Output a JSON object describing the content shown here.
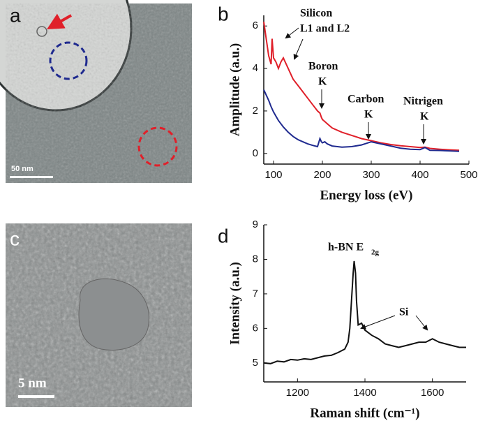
{
  "panels": [
    "a",
    "b",
    "c",
    "d"
  ],
  "scale_bars": [
    "50 nm",
    "5 nm"
  ],
  "chart_data": [
    {
      "type": "line",
      "xlabel": "Energy loss (eV)",
      "ylabel": "Amplitude (a.u.)",
      "annotations": [
        "Silicon",
        "L1 and L2",
        "Boron",
        "K",
        "Carbon",
        "K",
        "Nitrigen",
        "K"
      ],
      "x": [
        80,
        90,
        95,
        97,
        100,
        105,
        110,
        115,
        120,
        130,
        140,
        150,
        160,
        170,
        180,
        190,
        195,
        198,
        200,
        205,
        210,
        220,
        240,
        260,
        280,
        300,
        320,
        340,
        360,
        380,
        400,
        410,
        420,
        440,
        460,
        480
      ],
      "series": [
        {
          "color": "#e0202a",
          "values": [
            6.2,
            4.6,
            4.2,
            5.4,
            4.5,
            4.3,
            4.0,
            4.3,
            4.5,
            4.0,
            3.5,
            3.2,
            2.9,
            2.6,
            2.3,
            2.0,
            1.9,
            1.7,
            1.6,
            1.5,
            1.4,
            1.2,
            1.0,
            0.85,
            0.7,
            0.6,
            0.5,
            0.42,
            0.36,
            0.32,
            0.28,
            0.3,
            0.24,
            0.2,
            0.17,
            0.15
          ]
        },
        {
          "color": "#1f2a8f",
          "values": [
            3.0,
            2.5,
            2.2,
            2.1,
            1.95,
            1.75,
            1.55,
            1.4,
            1.25,
            1.0,
            0.8,
            0.65,
            0.55,
            0.45,
            0.38,
            0.32,
            0.7,
            0.55,
            0.5,
            0.55,
            0.45,
            0.35,
            0.3,
            0.32,
            0.4,
            0.55,
            0.45,
            0.35,
            0.25,
            0.2,
            0.18,
            0.28,
            0.15,
            0.14,
            0.12,
            0.1
          ]
        }
      ],
      "xlim": [
        80,
        500
      ],
      "xticks": [
        100,
        200,
        300,
        400,
        500
      ],
      "ylim": [
        -0.5,
        6.5
      ],
      "yticks": [
        0,
        2,
        4,
        6
      ]
    },
    {
      "type": "line",
      "xlabel": "Raman shift (cm⁻¹)",
      "ylabel": "Intensity (a.u.)",
      "annotations": [
        "h-BN E",
        "2g",
        "Si"
      ],
      "x": [
        1100,
        1120,
        1140,
        1160,
        1180,
        1200,
        1220,
        1240,
        1260,
        1280,
        1300,
        1320,
        1340,
        1350,
        1355,
        1360,
        1365,
        1368,
        1372,
        1375,
        1380,
        1390,
        1400,
        1420,
        1440,
        1460,
        1480,
        1500,
        1520,
        1540,
        1560,
        1580,
        1600,
        1620,
        1640,
        1660,
        1680,
        1700
      ],
      "series": [
        {
          "color": "#111111",
          "values": [
            5.0,
            4.98,
            5.05,
            5.03,
            5.1,
            5.08,
            5.12,
            5.1,
            5.15,
            5.2,
            5.22,
            5.3,
            5.4,
            5.6,
            6.0,
            6.8,
            7.6,
            7.95,
            7.6,
            6.8,
            6.1,
            6.15,
            5.95,
            5.8,
            5.7,
            5.55,
            5.5,
            5.45,
            5.5,
            5.55,
            5.6,
            5.6,
            5.7,
            5.6,
            5.55,
            5.5,
            5.45,
            5.45
          ]
        }
      ],
      "xlim": [
        1100,
        1700
      ],
      "xticks": [
        1200,
        1400,
        1600
      ],
      "ylim": [
        4.45,
        9
      ],
      "yticks": [
        5,
        6,
        7,
        8,
        9
      ]
    }
  ]
}
